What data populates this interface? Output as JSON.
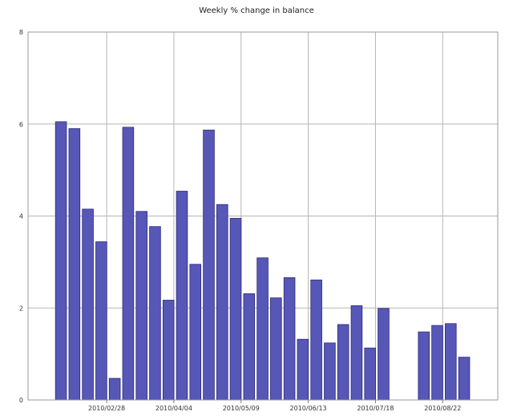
{
  "chart_data": {
    "type": "bar",
    "title": "Weekly % change in balance",
    "xlabel": "",
    "ylabel": "",
    "ylim": [
      0,
      8
    ],
    "yticks": [
      "0",
      "2",
      "4",
      "6",
      "8"
    ],
    "xticks": [
      {
        "label": "2010/02/28",
        "at": 3.4
      },
      {
        "label": "2010/04/04",
        "at": 8.4
      },
      {
        "label": "2010/05/09",
        "at": 13.4
      },
      {
        "label": "2010/06/13",
        "at": 18.4
      },
      {
        "label": "2010/07/18",
        "at": 23.4
      },
      {
        "label": "2010/08/22",
        "at": 28.4
      }
    ],
    "x_extent": [
      -2.45,
      32.5
    ],
    "grid": true,
    "bar_color": "#5757b8",
    "bar_edge_color": "#2a2a7a",
    "values": [
      6.05,
      5.9,
      4.15,
      3.44,
      0.47,
      5.93,
      4.1,
      3.77,
      2.17,
      4.54,
      2.95,
      5.87,
      4.25,
      3.95,
      2.31,
      3.09,
      2.22,
      2.66,
      1.32,
      2.61,
      1.24,
      1.64,
      2.05,
      1.13,
      1.99,
      null,
      null,
      1.48,
      1.62,
      1.66,
      0.93
    ]
  }
}
